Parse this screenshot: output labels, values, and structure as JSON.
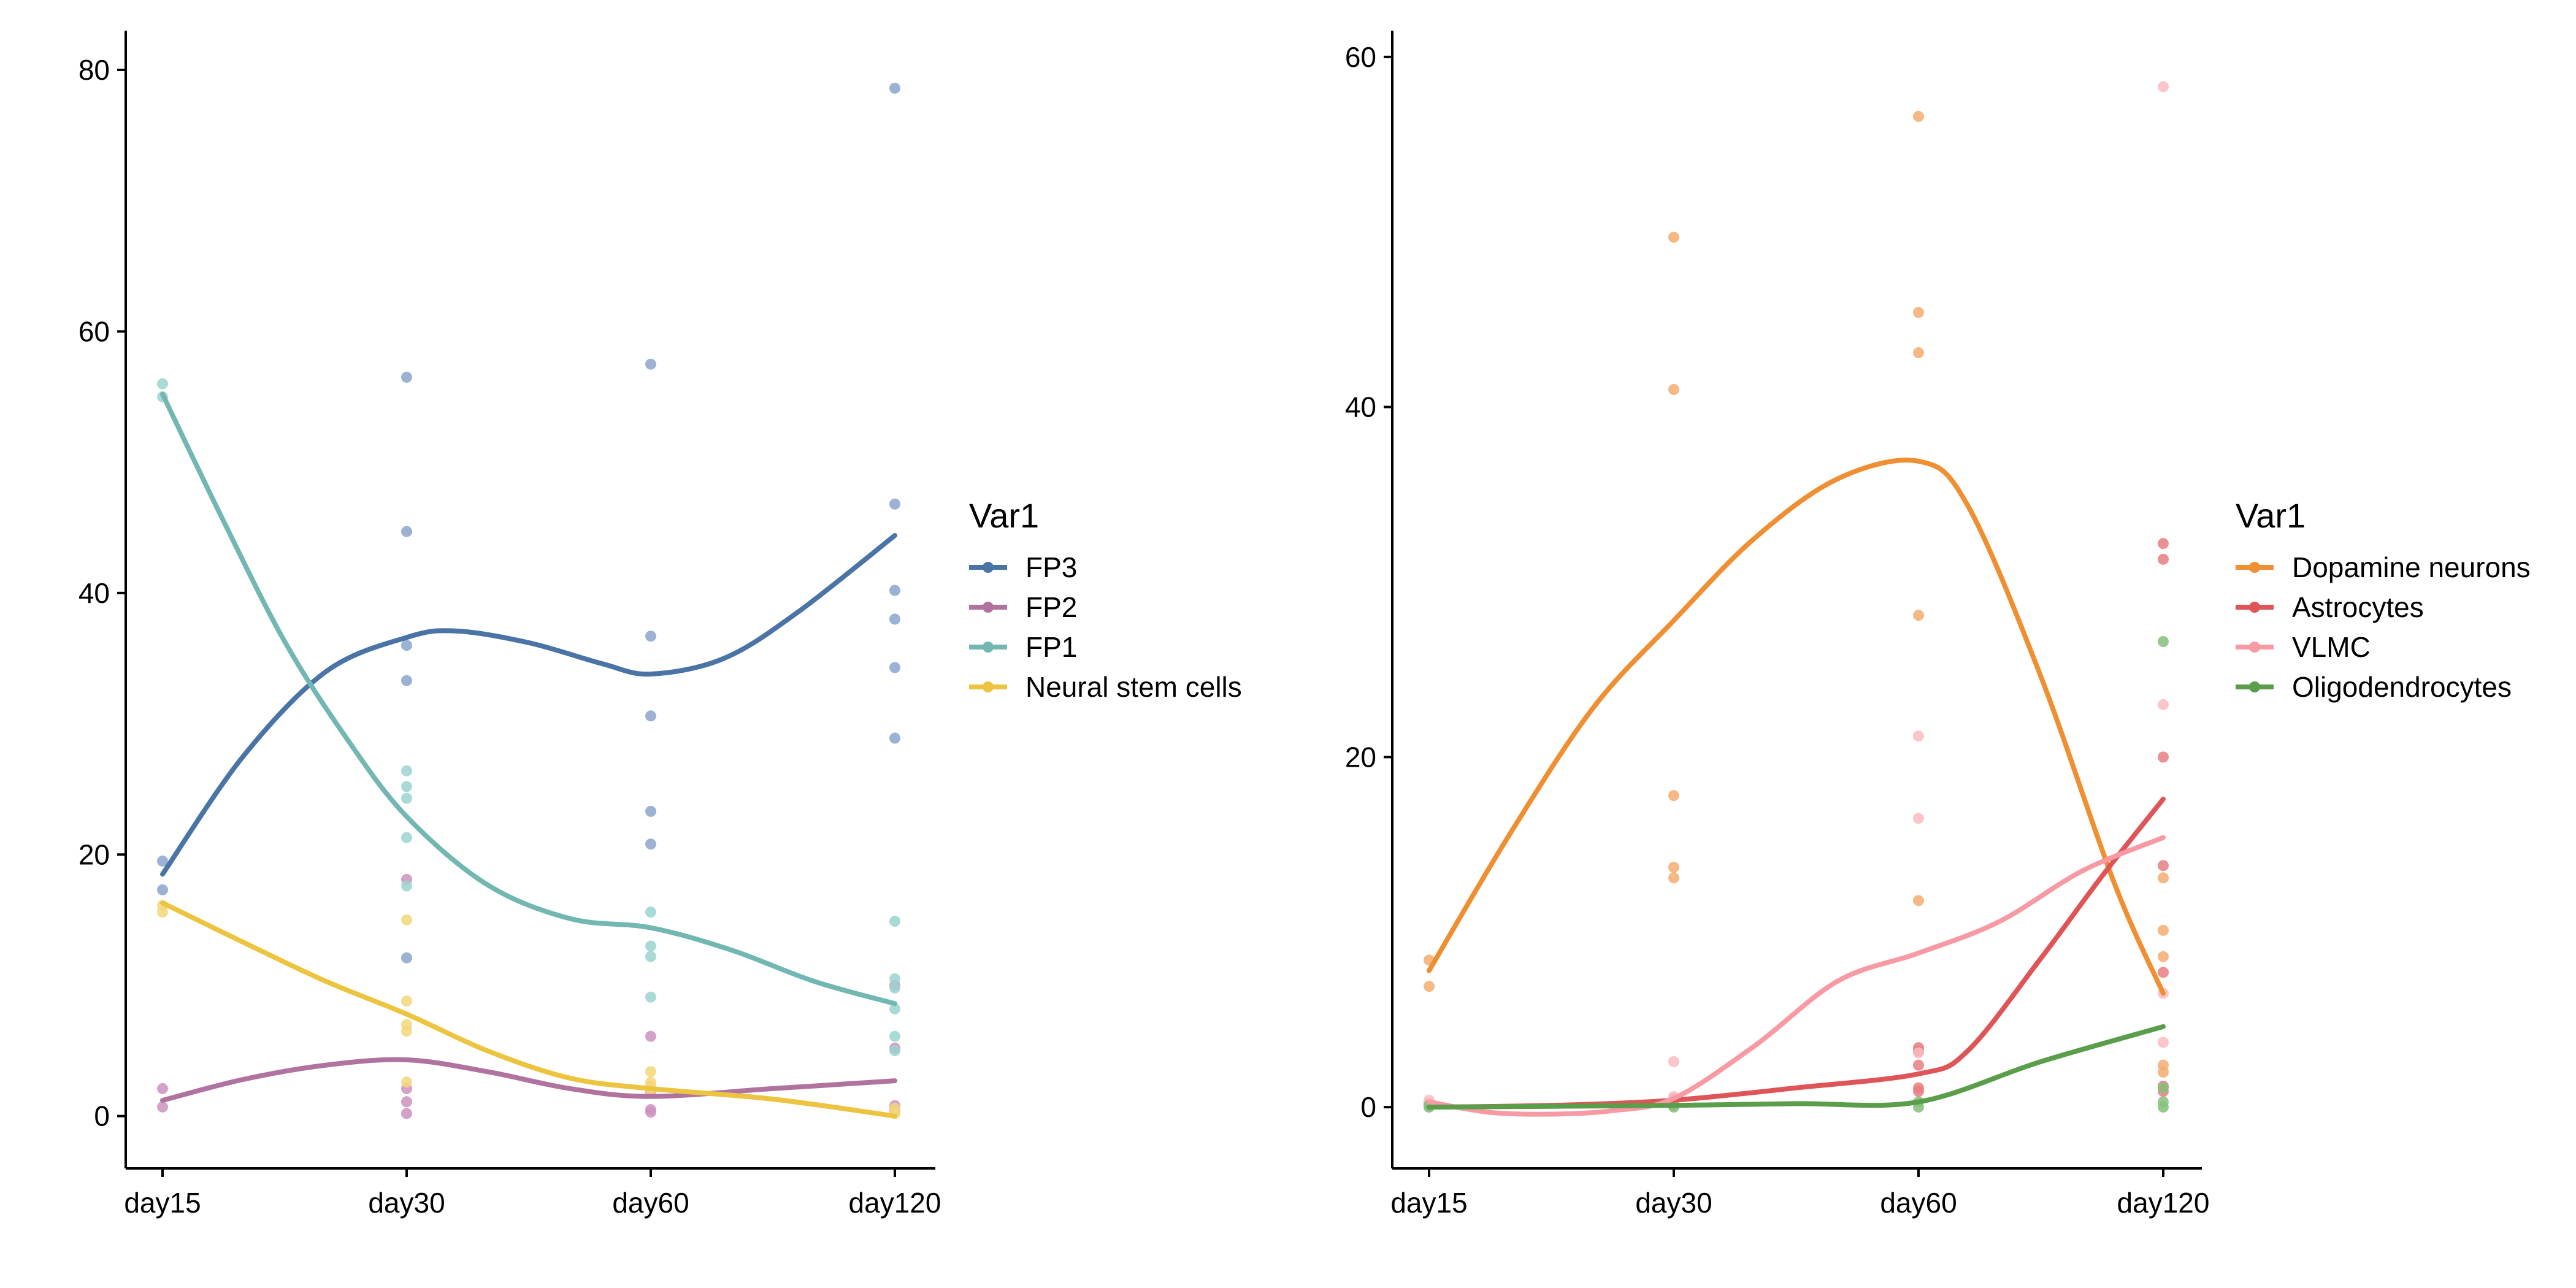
{
  "chart_data": [
    {
      "type": "scatter",
      "categories": [
        "day15",
        "day30",
        "day60",
        "day120"
      ],
      "ylim": [
        -4,
        83
      ],
      "yticks": [
        0,
        20,
        40,
        60,
        80
      ],
      "grid": false,
      "legend": {
        "title": "Var1",
        "placement": "right",
        "items": [
          {
            "label": "FP3",
            "color": "#4a74a6"
          },
          {
            "label": "FP2",
            "color": "#b0739f"
          },
          {
            "label": "FP1",
            "color": "#72b7b2"
          },
          {
            "label": "Neural stem cells",
            "color": "#ecc43f"
          }
        ]
      },
      "series": [
        {
          "name": "FP3",
          "color": "#4a74a6",
          "point_color": "#8aa4cc",
          "points": [
            [
              0,
              19.5
            ],
            [
              0,
              17.3
            ],
            [
              1,
              56.5
            ],
            [
              1,
              44.7
            ],
            [
              1,
              36
            ],
            [
              1,
              33.3
            ],
            [
              1,
              12.1
            ],
            [
              2,
              57.5
            ],
            [
              2,
              36.7
            ],
            [
              2,
              30.6
            ],
            [
              2,
              23.3
            ],
            [
              2,
              20.8
            ],
            [
              3,
              78.6
            ],
            [
              3,
              46.8
            ],
            [
              3,
              40.2
            ],
            [
              3,
              38
            ],
            [
              3,
              34.3
            ],
            [
              3,
              28.9
            ]
          ],
          "fit": [
            [
              0,
              18.5
            ],
            [
              0.33,
              27.5
            ],
            [
              0.67,
              34.0
            ],
            [
              1,
              36.6
            ],
            [
              1.2,
              37.1
            ],
            [
              1.5,
              36.2
            ],
            [
              1.8,
              34.6
            ],
            [
              2,
              33.8
            ],
            [
              2.3,
              35.0
            ],
            [
              2.6,
              38.5
            ],
            [
              3,
              44.4
            ]
          ]
        },
        {
          "name": "FP2",
          "color": "#b0739f",
          "point_color": "#cc92be",
          "points": [
            [
              0,
              2.1
            ],
            [
              0,
              0.7
            ],
            [
              1,
              18.1
            ],
            [
              1,
              2.1
            ],
            [
              1,
              1.1
            ],
            [
              1,
              0.2
            ],
            [
              2,
              6.1
            ],
            [
              2,
              1.8
            ],
            [
              2,
              0.5
            ],
            [
              2,
              0.3
            ],
            [
              3,
              10
            ],
            [
              3,
              5.2
            ],
            [
              3,
              0.8
            ],
            [
              3,
              0.4
            ]
          ],
          "fit": [
            [
              0,
              1.2
            ],
            [
              0.33,
              2.8
            ],
            [
              0.67,
              3.9
            ],
            [
              1,
              4.3
            ],
            [
              1.33,
              3.4
            ],
            [
              1.67,
              2.1
            ],
            [
              2,
              1.5
            ],
            [
              2.5,
              2.1
            ],
            [
              3,
              2.7
            ]
          ]
        },
        {
          "name": "FP1",
          "color": "#72b7b2",
          "point_color": "#9bd4cf",
          "points": [
            [
              0,
              56
            ],
            [
              0,
              55
            ],
            [
              1,
              26.4
            ],
            [
              1,
              25.2
            ],
            [
              1,
              24.3
            ],
            [
              1,
              21.3
            ],
            [
              1,
              17.6
            ],
            [
              2,
              15.6
            ],
            [
              2,
              13
            ],
            [
              2,
              12.2
            ],
            [
              2,
              9.1
            ],
            [
              3,
              14.9
            ],
            [
              3,
              10.5
            ],
            [
              3,
              9.8
            ],
            [
              3,
              8.2
            ],
            [
              3,
              6.1
            ],
            [
              3,
              5
            ]
          ],
          "fit": [
            [
              0,
              55.2
            ],
            [
              0.25,
              45.5
            ],
            [
              0.5,
              36.3
            ],
            [
              0.75,
              29.0
            ],
            [
              1,
              22.9
            ],
            [
              1.33,
              17.7
            ],
            [
              1.67,
              15.1
            ],
            [
              2,
              14.4
            ],
            [
              2.33,
              12.7
            ],
            [
              2.67,
              10.3
            ],
            [
              3,
              8.6
            ]
          ]
        },
        {
          "name": "Neural stem cells",
          "color": "#ecc43f",
          "point_color": "#f3d77a",
          "points": [
            [
              0,
              16.1
            ],
            [
              0,
              15.6
            ],
            [
              1,
              15
            ],
            [
              1,
              8.8
            ],
            [
              1,
              7
            ],
            [
              1,
              6.5
            ],
            [
              1,
              2.6
            ],
            [
              2,
              3.4
            ],
            [
              2,
              2.6
            ],
            [
              2,
              2.3
            ],
            [
              2,
              2
            ],
            [
              3,
              0.6
            ],
            [
              3,
              0.2
            ]
          ],
          "fit": [
            [
              0,
              16.3
            ],
            [
              0.33,
              13.3
            ],
            [
              0.67,
              10.3
            ],
            [
              1,
              7.8
            ],
            [
              1.33,
              5.0
            ],
            [
              1.67,
              2.9
            ],
            [
              2,
              2.1
            ],
            [
              2.5,
              1.3
            ],
            [
              3,
              0.0
            ]
          ]
        }
      ]
    },
    {
      "type": "scatter",
      "categories": [
        "day15",
        "day30",
        "day60",
        "day120"
      ],
      "ylim": [
        -3.5,
        61.5
      ],
      "yticks": [
        0,
        20,
        40,
        60
      ],
      "grid": false,
      "legend": {
        "title": "Var1",
        "placement": "right",
        "items": [
          {
            "label": "Dopamine neurons",
            "color": "#ef8f32"
          },
          {
            "label": "Astrocytes",
            "color": "#de5457"
          },
          {
            "label": "VLMC",
            "color": "#f79aa3"
          },
          {
            "label": "Oligodendrocytes",
            "color": "#5a9e4b"
          }
        ]
      },
      "series": [
        {
          "name": "Dopamine neurons",
          "color": "#ef8f32",
          "point_color": "#f5ac6f",
          "points": [
            [
              0,
              8.4
            ],
            [
              0,
              6.9
            ],
            [
              1,
              49.7
            ],
            [
              1,
              41
            ],
            [
              1,
              17.8
            ],
            [
              1,
              13.7
            ],
            [
              1,
              13.1
            ],
            [
              2,
              56.6
            ],
            [
              2,
              45.4
            ],
            [
              2,
              43.1
            ],
            [
              2,
              28.1
            ],
            [
              2,
              11.8
            ],
            [
              3,
              13.1
            ],
            [
              3,
              10.1
            ],
            [
              3,
              8.6
            ],
            [
              3,
              2.4
            ],
            [
              3,
              2
            ]
          ],
          "fit": [
            [
              0,
              7.8
            ],
            [
              0.33,
              15.6
            ],
            [
              0.67,
              22.8
            ],
            [
              1,
              27.8
            ],
            [
              1.33,
              32.5
            ],
            [
              1.67,
              35.9
            ],
            [
              2,
              36.9
            ],
            [
              2.2,
              34.4
            ],
            [
              2.5,
              24.6
            ],
            [
              2.8,
              12.8
            ],
            [
              3,
              6.5
            ]
          ]
        },
        {
          "name": "Astrocytes",
          "color": "#de5457",
          "point_color": "#e77d80",
          "points": [
            [
              0,
              0.2
            ],
            [
              0,
              0.1
            ],
            [
              1,
              0.5
            ],
            [
              1,
              0.2
            ],
            [
              2,
              3.4
            ],
            [
              2,
              3.2
            ],
            [
              2,
              2.4
            ],
            [
              2,
              1.1
            ],
            [
              2,
              0.9
            ],
            [
              3,
              32.2
            ],
            [
              3,
              31.3
            ],
            [
              3,
              20
            ],
            [
              3,
              13.8
            ],
            [
              3,
              7.7
            ],
            [
              3,
              1.2
            ],
            [
              3,
              0.9
            ]
          ],
          "fit": [
            [
              0,
              0.0
            ],
            [
              0.5,
              0.1
            ],
            [
              1,
              0.4
            ],
            [
              1.5,
              1.1
            ],
            [
              2,
              1.9
            ],
            [
              2.2,
              3.2
            ],
            [
              2.5,
              8.5
            ],
            [
              2.75,
              13.2
            ],
            [
              3,
              17.6
            ]
          ]
        },
        {
          "name": "VLMC",
          "color": "#f79aa3",
          "point_color": "#f9bcc2",
          "points": [
            [
              0,
              0.4
            ],
            [
              0,
              0
            ],
            [
              1,
              2.6
            ],
            [
              1,
              0.6
            ],
            [
              2,
              21.2
            ],
            [
              2,
              16.5
            ],
            [
              2,
              3.1
            ],
            [
              3,
              58.3
            ],
            [
              3,
              23
            ],
            [
              3,
              6.5
            ],
            [
              3,
              3.7
            ]
          ],
          "fit": [
            [
              0,
              0.3
            ],
            [
              0.25,
              -0.3
            ],
            [
              0.5,
              -0.4
            ],
            [
              0.75,
              -0.2
            ],
            [
              1,
              0.5
            ],
            [
              1.33,
              3.5
            ],
            [
              1.67,
              7.2
            ],
            [
              2,
              8.8
            ],
            [
              2.33,
              10.6
            ],
            [
              2.67,
              13.5
            ],
            [
              3,
              15.4
            ]
          ]
        },
        {
          "name": "Oligodendrocytes",
          "color": "#5a9e4b",
          "point_color": "#85bf7a",
          "points": [
            [
              0,
              0
            ],
            [
              0,
              0.1
            ],
            [
              1,
              0
            ],
            [
              1,
              0.1
            ],
            [
              2,
              0
            ],
            [
              2,
              0.3
            ],
            [
              3,
              26.6
            ],
            [
              3,
              1.1
            ],
            [
              3,
              0.3
            ],
            [
              3,
              0
            ]
          ],
          "fit": [
            [
              0,
              0.0
            ],
            [
              0.5,
              0.05
            ],
            [
              1,
              0.1
            ],
            [
              1.5,
              0.2
            ],
            [
              2,
              0.3
            ],
            [
              2.5,
              2.6
            ],
            [
              3,
              4.6
            ]
          ]
        }
      ]
    }
  ]
}
